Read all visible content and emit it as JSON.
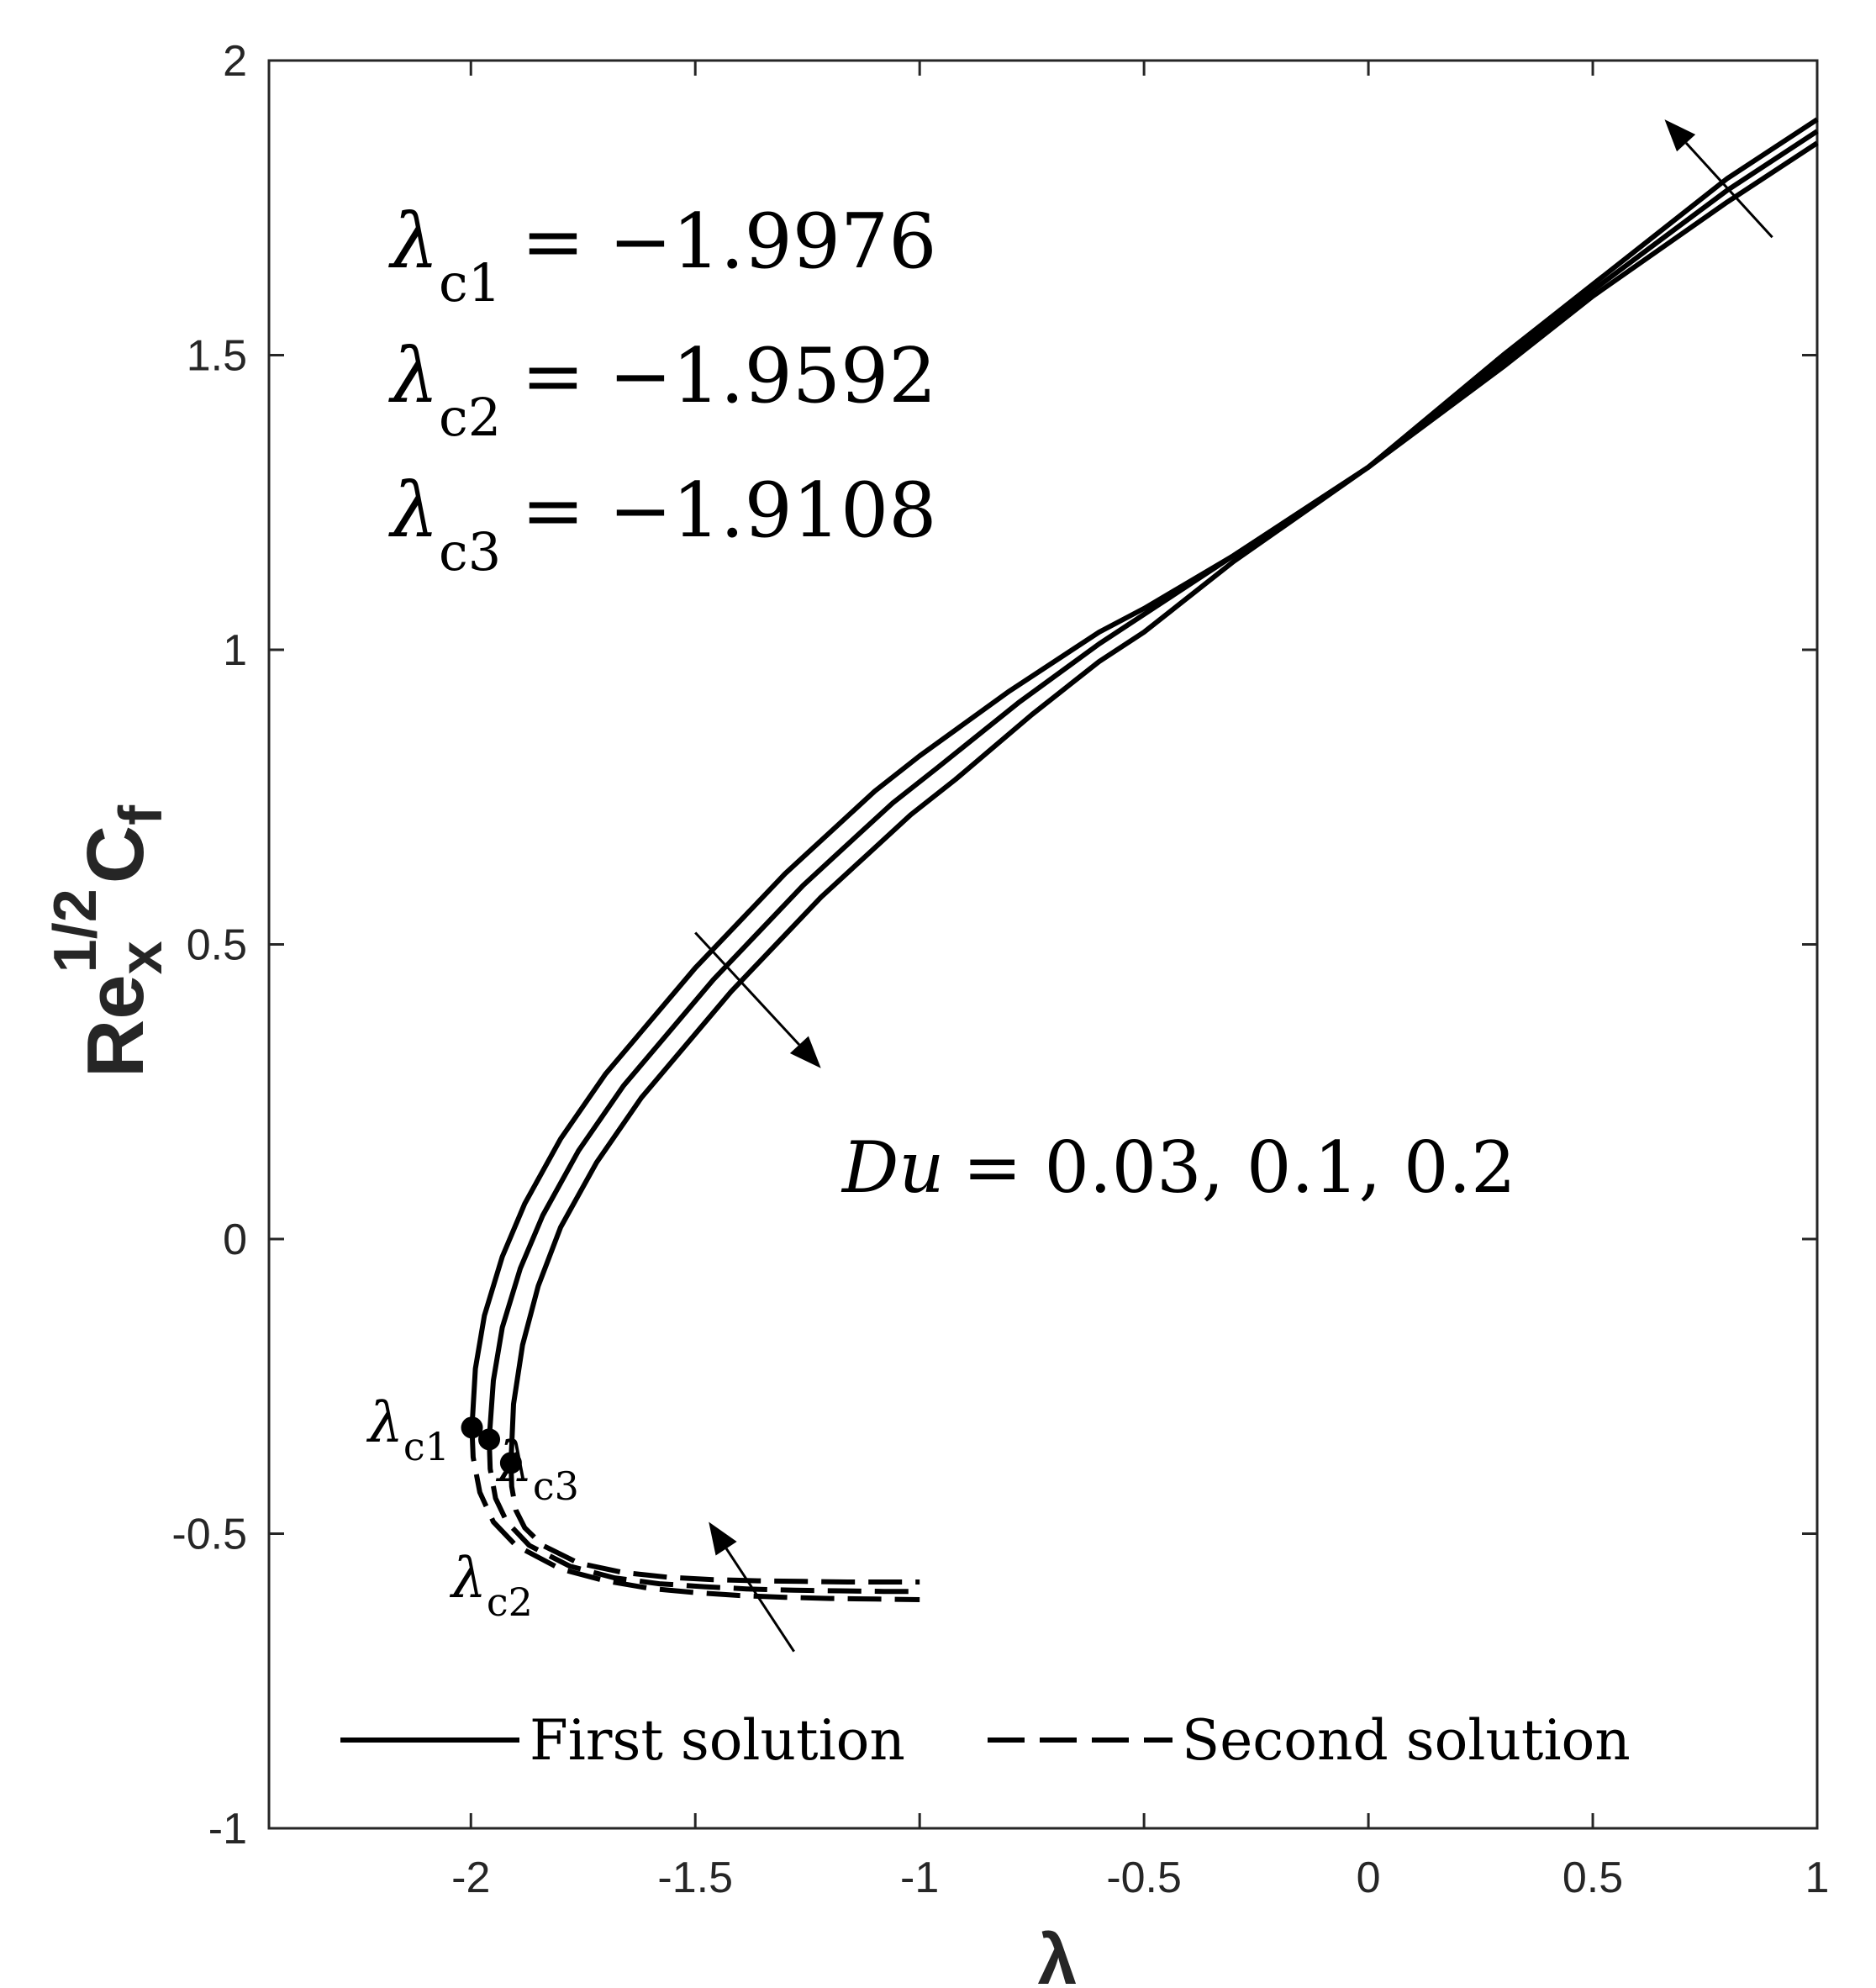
{
  "chart_data": {
    "type": "line",
    "xlabel": "λ",
    "ylabel": {
      "base": "Re",
      "sub": "x",
      "sup": "1/2",
      "base2": "C",
      "sub2": "f"
    },
    "xlim": [
      -2.45,
      1
    ],
    "ylim": [
      -1,
      2
    ],
    "xticks": [
      -2,
      -1.5,
      -1,
      -0.5,
      0,
      0.5,
      1
    ],
    "xtick_labels": [
      "-2",
      "-1.5",
      "-1",
      "-0.5",
      "0",
      "0.5",
      "1"
    ],
    "yticks": [
      -1,
      -0.5,
      0,
      0.5,
      1,
      1.5,
      2
    ],
    "ytick_labels": [
      "-1",
      "-0.5",
      "0",
      "0.5",
      "1",
      "1.5",
      "2"
    ],
    "series": [
      {
        "name": "First solution, Du = 0.03",
        "style": "solid",
        "points": [
          [
            -1.9976,
            -0.32
          ],
          [
            -1.99,
            -0.22
          ],
          [
            -1.97,
            -0.13
          ],
          [
            -1.93,
            -0.03
          ],
          [
            -1.88,
            0.06
          ],
          [
            -1.8,
            0.17
          ],
          [
            -1.7,
            0.28
          ],
          [
            -1.6,
            0.37
          ],
          [
            -1.5,
            0.46
          ],
          [
            -1.4,
            0.54
          ],
          [
            -1.3,
            0.62
          ],
          [
            -1.2,
            0.69
          ],
          [
            -1.1,
            0.76
          ],
          [
            -1.0,
            0.82
          ],
          [
            -0.8,
            0.93
          ],
          [
            -0.6,
            1.03
          ],
          [
            -0.5,
            1.07
          ],
          [
            -0.3,
            1.16
          ],
          [
            0.0,
            1.31
          ],
          [
            0.3,
            1.48
          ],
          [
            0.5,
            1.6
          ],
          [
            0.8,
            1.76
          ],
          [
            1.0,
            1.86
          ]
        ]
      },
      {
        "name": "First solution, Du = 0.1",
        "style": "solid",
        "points": [
          [
            -1.9592,
            -0.34
          ],
          [
            -1.95,
            -0.24
          ],
          [
            -1.93,
            -0.15
          ],
          [
            -1.89,
            -0.05
          ],
          [
            -1.84,
            0.04
          ],
          [
            -1.76,
            0.15
          ],
          [
            -1.66,
            0.26
          ],
          [
            -1.56,
            0.35
          ],
          [
            -1.46,
            0.44
          ],
          [
            -1.36,
            0.52
          ],
          [
            -1.26,
            0.6
          ],
          [
            -1.16,
            0.67
          ],
          [
            -1.06,
            0.74
          ],
          [
            -0.96,
            0.8
          ],
          [
            -0.78,
            0.91
          ],
          [
            -0.6,
            1.01
          ],
          [
            -0.5,
            1.06
          ],
          [
            -0.3,
            1.16
          ],
          [
            0.0,
            1.31
          ],
          [
            0.3,
            1.49
          ],
          [
            0.5,
            1.61
          ],
          [
            0.8,
            1.78
          ],
          [
            1.0,
            1.88
          ]
        ]
      },
      {
        "name": "First solution, Du = 0.2",
        "style": "solid",
        "points": [
          [
            -1.9108,
            -0.38
          ],
          [
            -1.905,
            -0.28
          ],
          [
            -1.885,
            -0.18
          ],
          [
            -1.85,
            -0.08
          ],
          [
            -1.8,
            0.02
          ],
          [
            -1.72,
            0.13
          ],
          [
            -1.62,
            0.24
          ],
          [
            -1.52,
            0.33
          ],
          [
            -1.42,
            0.42
          ],
          [
            -1.32,
            0.5
          ],
          [
            -1.22,
            0.58
          ],
          [
            -1.12,
            0.65
          ],
          [
            -1.02,
            0.72
          ],
          [
            -0.92,
            0.78
          ],
          [
            -0.75,
            0.89
          ],
          [
            -0.6,
            0.98
          ],
          [
            -0.5,
            1.03
          ],
          [
            -0.3,
            1.15
          ],
          [
            0.0,
            1.31
          ],
          [
            0.3,
            1.5
          ],
          [
            0.5,
            1.62
          ],
          [
            0.8,
            1.8
          ],
          [
            1.0,
            1.9
          ]
        ]
      },
      {
        "name": "Second solution, Du = 0.03",
        "style": "dashed",
        "points": [
          [
            -1.9976,
            -0.32
          ],
          [
            -1.995,
            -0.37
          ],
          [
            -1.98,
            -0.43
          ],
          [
            -1.95,
            -0.48
          ],
          [
            -1.9,
            -0.52
          ],
          [
            -1.8,
            -0.56
          ],
          [
            -1.7,
            -0.58
          ],
          [
            -1.6,
            -0.593
          ],
          [
            -1.5,
            -0.6
          ],
          [
            -1.4,
            -0.605
          ],
          [
            -1.3,
            -0.608
          ],
          [
            -1.2,
            -0.61
          ],
          [
            -1.1,
            -0.611
          ],
          [
            -1.0,
            -0.612
          ]
        ]
      },
      {
        "name": "Second solution, Du = 0.1",
        "style": "dashed",
        "points": [
          [
            -1.9592,
            -0.34
          ],
          [
            -1.957,
            -0.39
          ],
          [
            -1.945,
            -0.44
          ],
          [
            -1.92,
            -0.48
          ],
          [
            -1.87,
            -0.52
          ],
          [
            -1.78,
            -0.555
          ],
          [
            -1.68,
            -0.575
          ],
          [
            -1.58,
            -0.585
          ],
          [
            -1.48,
            -0.59
          ],
          [
            -1.38,
            -0.594
          ],
          [
            -1.28,
            -0.596
          ],
          [
            -1.18,
            -0.597
          ],
          [
            -1.08,
            -0.598
          ],
          [
            -1.0,
            -0.598
          ]
        ]
      },
      {
        "name": "Second solution, Du = 0.2",
        "style": "dashed",
        "points": [
          [
            -1.9108,
            -0.38
          ],
          [
            -1.909,
            -0.42
          ],
          [
            -1.9,
            -0.46
          ],
          [
            -1.88,
            -0.49
          ],
          [
            -1.84,
            -0.52
          ],
          [
            -1.76,
            -0.55
          ],
          [
            -1.66,
            -0.566
          ],
          [
            -1.56,
            -0.574
          ],
          [
            -1.46,
            -0.578
          ],
          [
            -1.36,
            -0.58
          ],
          [
            -1.26,
            -0.581
          ],
          [
            -1.16,
            -0.582
          ],
          [
            -1.08,
            -0.582
          ],
          [
            -1.0,
            -0.582
          ]
        ]
      }
    ],
    "critical_points": [
      {
        "name": "λc1",
        "x": -1.9976,
        "y": -0.32
      },
      {
        "name": "λc2",
        "x": -1.9592,
        "y": -0.34
      },
      {
        "name": "λc3",
        "x": -1.9108,
        "y": -0.38
      }
    ],
    "critical_values": [
      {
        "sym": "λ",
        "sub": "c1",
        "eq": "= −1.9976"
      },
      {
        "sym": "λ",
        "sub": "c2",
        "eq": "= −1.9592"
      },
      {
        "sym": "λ",
        "sub": "c3",
        "eq": "= −1.9108"
      }
    ],
    "point_labels": [
      {
        "sym": "λ",
        "sub": "c1"
      },
      {
        "sym": "λ",
        "sub": "c2"
      },
      {
        "sym": "λ",
        "sub": "c3"
      }
    ],
    "annotation": {
      "var": "Du",
      "text": "= 0.03, 0.1, 0.2"
    },
    "arrows": [
      {
        "from": [
          0.9,
          1.7
        ],
        "to": [
          0.66,
          1.9
        ]
      },
      {
        "from": [
          -1.5,
          0.52
        ],
        "to": [
          -1.22,
          0.29
        ]
      },
      {
        "from": [
          -1.28,
          -0.7
        ],
        "to": [
          -1.47,
          -0.48
        ]
      }
    ],
    "legend": {
      "placement": "bottom",
      "entries": [
        {
          "label": "First solution",
          "style": "solid"
        },
        {
          "label": "Second solution",
          "style": "dashed"
        }
      ]
    }
  }
}
